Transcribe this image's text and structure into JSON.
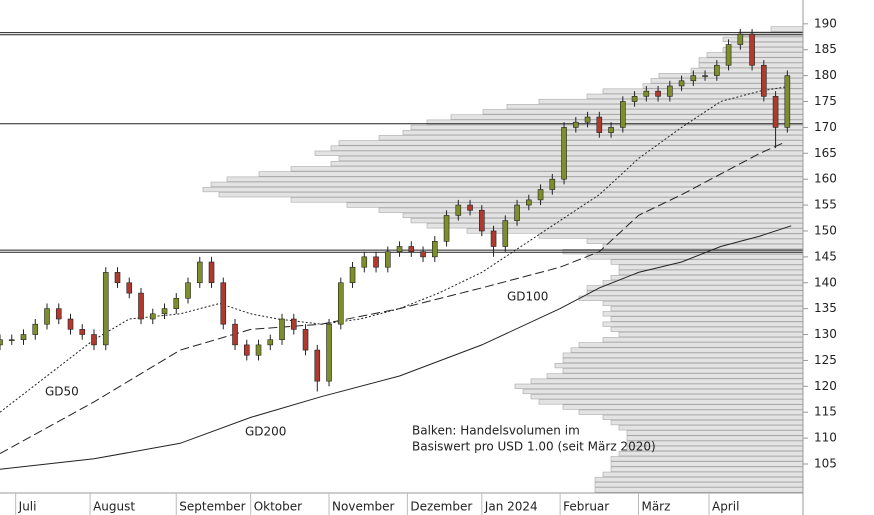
{
  "chart_data": {
    "type": "candlestick",
    "xlim": [
      0,
      205
    ],
    "xticks": [
      {
        "value": 4,
        "label": "Juli"
      },
      {
        "value": 23,
        "label": "August"
      },
      {
        "value": 45,
        "label": "September"
      },
      {
        "value": 64,
        "label": "Oktober"
      },
      {
        "value": 84,
        "label": "November"
      },
      {
        "value": 104,
        "label": "Dezember"
      },
      {
        "value": 123,
        "label": "Jan 2024"
      },
      {
        "value": 143,
        "label": "Februar"
      },
      {
        "value": 163,
        "label": "März"
      },
      {
        "value": 181,
        "label": "April"
      }
    ],
    "ylim": [
      99.4,
      194.6
    ],
    "yticks": [
      105,
      110,
      115,
      120,
      125,
      130,
      135,
      140,
      145,
      150,
      155,
      160,
      165,
      170,
      175,
      180,
      185,
      190
    ],
    "candles": {
      "up_color": "#7d8f2c",
      "down_color": "#b03a2e",
      "x": [
        0,
        3,
        6,
        9,
        12,
        15,
        18,
        21,
        24,
        27,
        30,
        33,
        36,
        39,
        42,
        45,
        48,
        51,
        54,
        57,
        60,
        63,
        66,
        69,
        72,
        75,
        78,
        81,
        84,
        87,
        90,
        93,
        96,
        99,
        102,
        105,
        108,
        111,
        114,
        117,
        120,
        123,
        126,
        129,
        132,
        135,
        138,
        141,
        144,
        147,
        150,
        153,
        156,
        159,
        162,
        165,
        168,
        171,
        174,
        177,
        180,
        183,
        186,
        189,
        192,
        195,
        198,
        201
      ],
      "open": [
        128,
        129,
        129,
        130,
        132,
        135,
        133,
        131,
        130,
        128,
        142,
        140,
        138,
        133,
        134,
        135,
        137,
        140,
        144,
        140,
        132,
        128,
        126,
        128,
        129,
        133,
        131,
        127,
        121,
        132,
        140,
        143,
        145,
        143,
        146,
        147,
        146,
        145,
        148,
        153,
        155,
        154,
        150,
        147,
        152,
        155,
        156,
        158,
        160,
        170,
        171,
        172,
        169,
        170,
        175,
        176,
        177,
        176,
        178,
        179,
        180,
        180,
        182,
        186,
        188,
        182,
        176,
        170
      ],
      "high": [
        130,
        130,
        131,
        133,
        136,
        136,
        134,
        132,
        131,
        143,
        143,
        141,
        139,
        135,
        136,
        138,
        141,
        145,
        145,
        141,
        133,
        129,
        129,
        130,
        134,
        134,
        132,
        128,
        133,
        141,
        144,
        146,
        146,
        147,
        148,
        148,
        147,
        149,
        154,
        156,
        156,
        155,
        151,
        153,
        156,
        157,
        159,
        161,
        171,
        172,
        173,
        173,
        171,
        176,
        177,
        178,
        178,
        179,
        180,
        181,
        181,
        183,
        187,
        189,
        189,
        183,
        177,
        181
      ],
      "low": [
        127,
        128,
        128,
        129,
        131,
        132,
        130,
        129,
        127,
        127,
        139,
        137,
        132,
        132,
        133,
        134,
        136,
        139,
        139,
        131,
        127,
        125,
        125,
        127,
        128,
        130,
        126,
        119,
        120,
        131,
        139,
        142,
        142,
        142,
        145,
        145,
        144,
        144,
        147,
        152,
        153,
        149,
        145,
        146,
        151,
        154,
        155,
        157,
        159,
        169,
        170,
        168,
        168,
        169,
        174,
        175,
        175,
        175,
        177,
        178,
        179,
        179,
        181,
        185,
        181,
        175,
        166,
        169
      ],
      "close": [
        129,
        129,
        130,
        132,
        135,
        133,
        131,
        130,
        128,
        142,
        140,
        138,
        133,
        134,
        135,
        137,
        140,
        144,
        140,
        132,
        128,
        126,
        128,
        129,
        133,
        131,
        127,
        121,
        132,
        140,
        143,
        145,
        143,
        146,
        147,
        146,
        145,
        148,
        153,
        155,
        154,
        150,
        147,
        152,
        155,
        156,
        158,
        160,
        170,
        171,
        172,
        169,
        170,
        175,
        176,
        177,
        176,
        178,
        179,
        180,
        180,
        182,
        186,
        188,
        182,
        176,
        170,
        180
      ]
    },
    "moving_averages": [
      {
        "name": "GD50",
        "color": "#222222",
        "dash": "2,2",
        "x": [
          0,
          24,
          33,
          46,
          56,
          64,
          71,
          82,
          92,
          102,
          112,
          123,
          133,
          143,
          153,
          163,
          174,
          184,
          194,
          202
        ],
        "values": [
          115,
          129,
          133,
          134,
          136,
          134,
          133,
          132,
          133,
          135,
          138,
          142,
          147,
          152,
          157,
          164,
          170,
          175,
          177,
          178
        ]
      },
      {
        "name": "GD100",
        "color": "#222222",
        "dash": "9,4",
        "x": [
          0,
          24,
          46,
          64,
          82,
          102,
          123,
          143,
          153,
          163,
          174,
          184,
          194,
          200
        ],
        "values": [
          107,
          117,
          127,
          131,
          132,
          135,
          139,
          143,
          146,
          153,
          157,
          161,
          165,
          167
        ]
      },
      {
        "name": "GD200",
        "color": "#222222",
        "dash": "none",
        "x": [
          0,
          24,
          46,
          64,
          82,
          102,
          123,
          143,
          153,
          163,
          174,
          184,
          194,
          202
        ],
        "values": [
          104,
          106,
          109,
          114,
          118,
          122,
          128,
          135,
          139,
          142,
          144,
          147,
          149,
          151
        ]
      }
    ],
    "hlines": [
      188.3,
      187.9,
      170.7,
      146.3,
      145.9
    ],
    "volume_profile": {
      "color": "#e3e3e3",
      "note": [
        "Balken: Handelsvolumen im",
        "Basiswert pro USD 1.00 (seit März 2020)"
      ],
      "levels": [
        189,
        188,
        187,
        186,
        185,
        184,
        183,
        182,
        181,
        180,
        179,
        178,
        177,
        176,
        175,
        174,
        173,
        172,
        171,
        170,
        169,
        168,
        167,
        166,
        165,
        164,
        163,
        162,
        161,
        160,
        159,
        158,
        157,
        156,
        155,
        154,
        153,
        152,
        151,
        150,
        149,
        148,
        147,
        146,
        145,
        144,
        143,
        142,
        141,
        140,
        139,
        138,
        137,
        136,
        135,
        134,
        133,
        132,
        131,
        130,
        129,
        128,
        127,
        126,
        125,
        124,
        123,
        122,
        121,
        120,
        119,
        118,
        117,
        116,
        115,
        114,
        113,
        112,
        111,
        110,
        109,
        108,
        107,
        106,
        105,
        104,
        103,
        102,
        101,
        100
      ],
      "values": [
        4,
        8,
        10,
        9,
        10,
        12,
        13,
        13,
        14,
        18,
        19,
        20,
        25,
        27,
        33,
        37,
        40,
        44,
        47,
        49,
        50,
        53,
        58,
        59,
        61,
        58,
        59,
        64,
        68,
        72,
        74,
        75,
        73,
        64,
        57,
        53,
        50,
        49,
        47,
        42,
        33,
        27,
        25,
        30,
        27,
        24,
        23,
        23,
        24,
        25,
        27,
        27,
        28,
        25,
        24,
        25,
        24,
        25,
        24,
        23,
        25,
        28,
        29,
        30,
        30,
        31,
        30,
        32,
        34,
        36,
        35,
        34,
        33,
        30,
        28,
        25,
        24,
        23,
        22,
        22,
        22,
        22,
        23,
        24,
        24,
        24,
        25,
        26,
        26,
        26
      ]
    }
  }
}
